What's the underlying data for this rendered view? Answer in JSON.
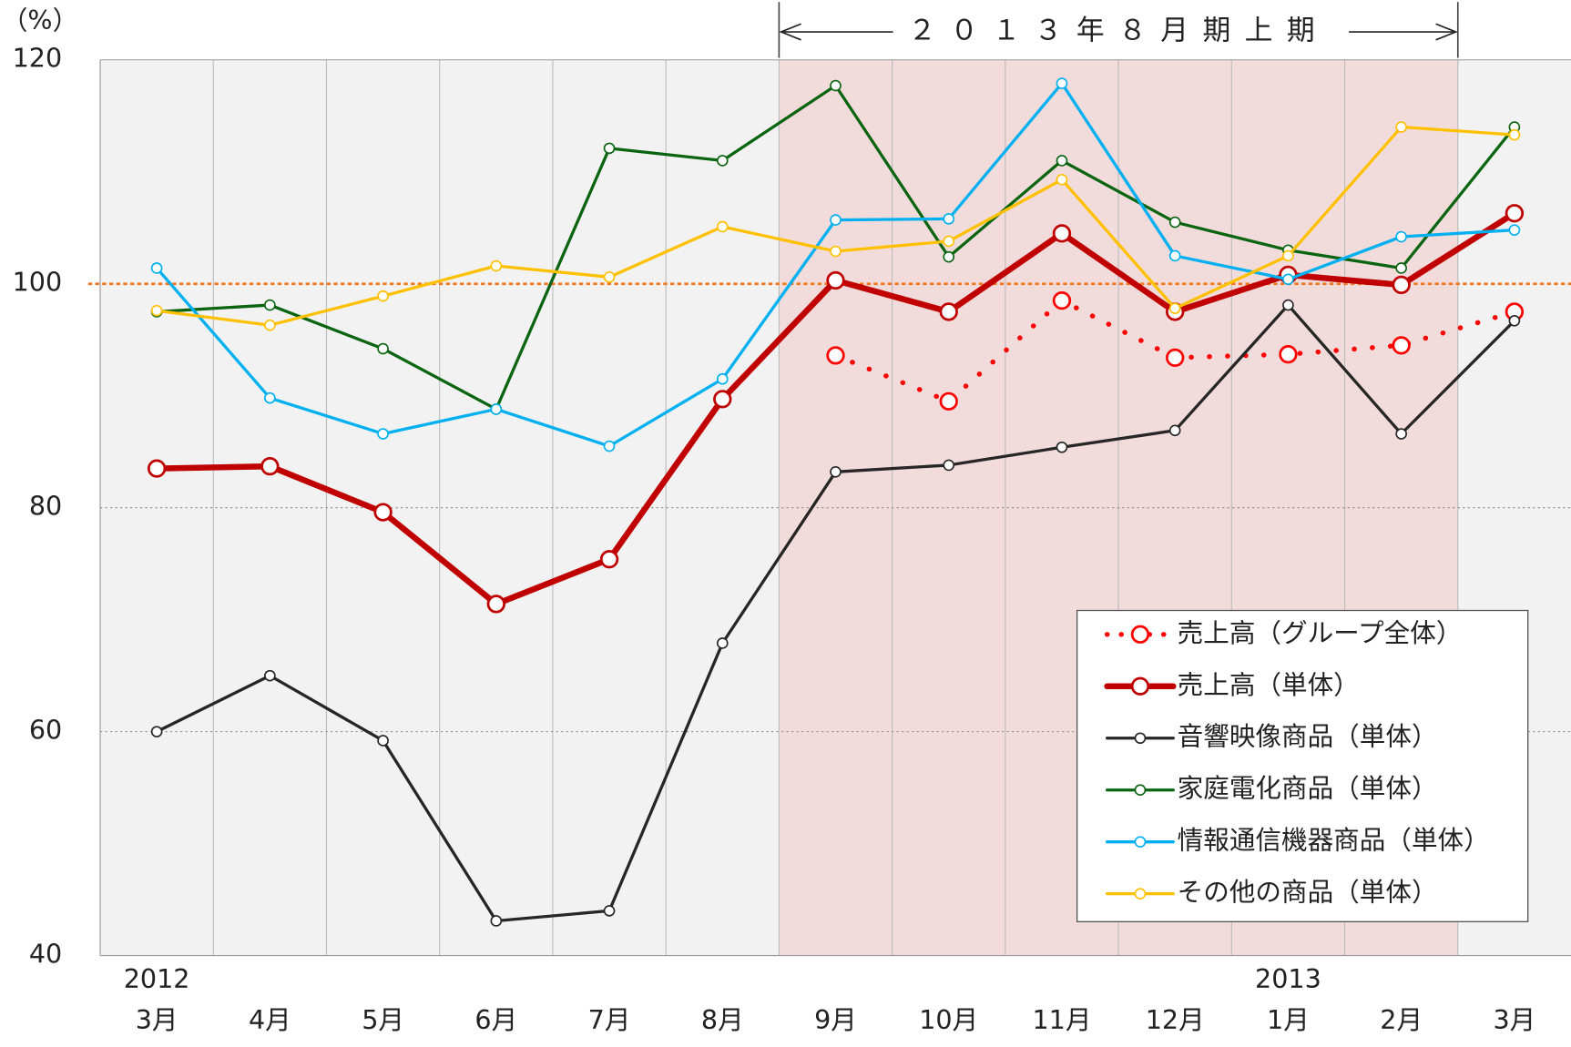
{
  "chart_data": {
    "type": "line",
    "unit_label": "（%）",
    "annotation": "２０１３年８月期上期",
    "categories": [
      "3月",
      "4月",
      "5月",
      "6月",
      "7月",
      "8月",
      "9月",
      "10月",
      "11月",
      "12月",
      "1月",
      "2月",
      "3月"
    ],
    "year_labels": [
      "2012",
      null,
      null,
      null,
      null,
      null,
      null,
      null,
      null,
      null,
      "2013",
      null,
      null
    ],
    "highlight": {
      "from": "9月",
      "to": "2月"
    },
    "reference_line": 100,
    "reference_color": "#f07820",
    "ylim": [
      40,
      120
    ],
    "yticks": [
      40,
      60,
      80,
      100,
      120
    ],
    "grid": true,
    "legend": "lower-right",
    "series": [
      {
        "name": "売上高（グループ全体）",
        "color": "#ff0000",
        "dashed": true,
        "line_width": 6,
        "values": [
          null,
          null,
          null,
          null,
          null,
          null,
          93.6,
          89.5,
          98.5,
          93.4,
          93.7,
          94.5,
          97.5
        ]
      },
      {
        "name": "売上高（単体）",
        "color": "#c00000",
        "line_width": 6,
        "values": [
          83.5,
          83.7,
          79.6,
          71.4,
          75.4,
          89.7,
          100.3,
          97.5,
          104.5,
          97.5,
          100.8,
          99.9,
          106.3
        ]
      },
      {
        "name": "音響映像商品（単体）",
        "color": "#262626",
        "line_width": 3,
        "values": [
          60,
          65,
          59.2,
          43.1,
          44,
          67.9,
          83.2,
          83.8,
          85.4,
          86.9,
          98.1,
          86.6,
          96.7
        ]
      },
      {
        "name": "家庭電化商品（単体）",
        "color": "#0a6410",
        "line_width": 3,
        "values": [
          97.5,
          98.1,
          94.2,
          88.8,
          112.1,
          111,
          117.7,
          102.4,
          111,
          105.5,
          103,
          101.4,
          114
        ]
      },
      {
        "name": "情報通信機器商品（単体）",
        "color": "#00b0f0",
        "line_width": 3,
        "values": [
          101.4,
          89.8,
          86.6,
          88.8,
          85.5,
          91.5,
          105.7,
          105.8,
          117.9,
          102.5,
          100.4,
          104.2,
          104.8
        ]
      },
      {
        "name": "その他の商品（単体）",
        "color": "#ffc000",
        "line_width": 3,
        "values": [
          97.6,
          96.3,
          98.9,
          101.6,
          100.6,
          105.1,
          102.9,
          103.8,
          109.3,
          97.8,
          102.5,
          114,
          113.3
        ]
      }
    ]
  }
}
